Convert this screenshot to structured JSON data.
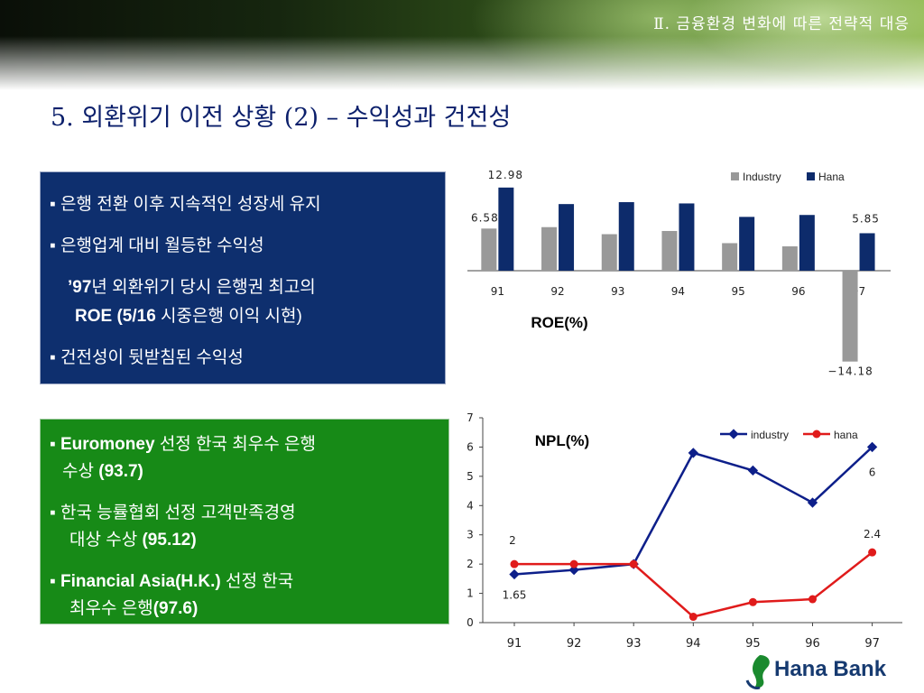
{
  "header": {
    "section": "Ⅱ. 금융환경 변화에 따른 전략적 대응"
  },
  "title": "5. 외환위기 이전 상황 (2) – 수익성과 건전성",
  "blue_box": {
    "b1": "▪ 은행 전환 이후 지속적인 성장세 유지",
    "b2": "▪ 은행업계 대비 월등한 수익성",
    "b3_a": "’97",
    "b3_b": "년 외환위기 당시 은행권 최고의",
    "b3_c": "ROE (5/16 ",
    "b3_d": "시중은행 이익 시현)",
    "b4": "▪ 건전성이 뒷받침된 수익성"
  },
  "green_box": {
    "g1_a": "▪ Euromoney",
    "g1_b": " 선정 한국 최우수 은행",
    "g1_c": "수상 ",
    "g1_d": "(93.7)",
    "g2_a": "▪ 한국 능률협회 선정 고객만족경영",
    "g2_b": "대상 수상 ",
    "g2_c": "(95.12)",
    "g3_a": "▪ Financial Asia(H.K.)",
    "g3_b": " 선정 한국",
    "g3_c": "최우수 은행",
    "g3_d": "(97.6)"
  },
  "logo": {
    "text": "Hana Bank"
  },
  "chart_data": [
    {
      "type": "bar",
      "title": "ROE(%)",
      "categories": [
        "91",
        "92",
        "93",
        "94",
        "95",
        "96",
        "97"
      ],
      "series": [
        {
          "name": "Industry",
          "color": "#999999",
          "values": [
            6.58,
            6.8,
            5.7,
            6.2,
            4.3,
            3.8,
            -14.18
          ]
        },
        {
          "name": "Hana",
          "color": "#0d2b6b",
          "values": [
            12.98,
            10.4,
            10.7,
            10.5,
            8.4,
            8.7,
            5.85
          ]
        }
      ],
      "data_labels": [
        "12.98",
        "6.58",
        "5.85",
        "−14.18"
      ],
      "legend_position": "top-right"
    },
    {
      "type": "line",
      "title": "NPL(%)",
      "categories": [
        "91",
        "92",
        "93",
        "94",
        "95",
        "96",
        "97"
      ],
      "ylim": [
        0,
        7
      ],
      "yticks": [
        "0",
        "1",
        "2",
        "3",
        "4",
        "5",
        "6",
        "7"
      ],
      "series": [
        {
          "name": "industry",
          "color": "#0d1f8a",
          "values": [
            1.65,
            1.8,
            2.0,
            5.8,
            5.2,
            4.1,
            6.0
          ]
        },
        {
          "name": "hana",
          "color": "#e01b1b",
          "values": [
            2.0,
            2.0,
            2.0,
            0.2,
            0.7,
            0.8,
            2.4
          ]
        }
      ],
      "data_labels": [
        "2",
        "1.65",
        "6",
        "2.4"
      ],
      "legend_position": "top-right"
    }
  ]
}
